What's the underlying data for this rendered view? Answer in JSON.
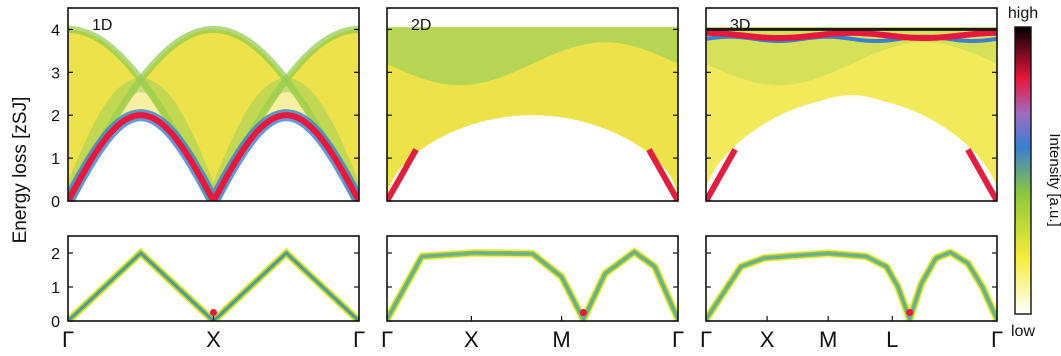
{
  "chart_data": {
    "type": "heatmap",
    "ylabel": "Energy loss [zSJ]",
    "colorbar": {
      "label": "Intensity [a.u.]",
      "high_label": "high",
      "low_label": "low",
      "colors": [
        "#ffffff",
        "#f5ec3a",
        "#8cc63f",
        "#3a7fd0",
        "#a06cc0",
        "#e8173c",
        "#000000"
      ]
    },
    "panels": [
      {
        "label": "1D",
        "row": "top",
        "ylim": [
          0,
          4.5
        ],
        "yticks": [
          "0",
          "1",
          "2",
          "3",
          "4"
        ],
        "xticks": [
          "Γ",
          "X",
          "Γ"
        ],
        "dispersion_max": 2.0,
        "continuum_upper_max": 4.0,
        "continuum_shape": "cosine"
      },
      {
        "label": "2D",
        "row": "top",
        "ylim": [
          0,
          4.5
        ],
        "yticks": [
          "0",
          "1",
          "2",
          "3",
          "4"
        ],
        "xticks": [
          "Γ",
          "X",
          "M",
          "Γ"
        ],
        "dispersion_max": 2.0,
        "continuum_upper_max": 4.0
      },
      {
        "label": "3D",
        "row": "top",
        "ylim": [
          0,
          4.5
        ],
        "yticks": [
          "0",
          "1",
          "2",
          "3",
          "4"
        ],
        "xticks": [
          "Γ",
          "X",
          "M",
          "L",
          "Γ"
        ],
        "dispersion_max": 2.0,
        "continuum_upper_max": 4.0
      },
      {
        "label": "",
        "row": "bottom",
        "ylim": [
          0,
          2.5
        ],
        "yticks": [
          "0",
          "1",
          "2"
        ],
        "xticks": [
          "Γ",
          "X",
          "Γ"
        ],
        "dispersion": [
          [
            0,
            0
          ],
          [
            0.25,
            2.0
          ],
          [
            0.5,
            0
          ],
          [
            0.75,
            2.0
          ],
          [
            1,
            0
          ]
        ]
      },
      {
        "label": "",
        "row": "bottom",
        "ylim": [
          0,
          2.5
        ],
        "yticks": [
          "0",
          "1",
          "2"
        ],
        "xticks": [
          "Γ",
          "X",
          "M",
          "Γ"
        ],
        "dispersion": [
          [
            0,
            0.05
          ],
          [
            0.12,
            1.9
          ],
          [
            0.3,
            2.0
          ],
          [
            0.5,
            1.98
          ],
          [
            0.6,
            1.3
          ],
          [
            0.675,
            0.05
          ],
          [
            0.75,
            1.4
          ],
          [
            0.85,
            2.03
          ],
          [
            0.92,
            1.6
          ],
          [
            1,
            0.05
          ]
        ]
      },
      {
        "label": "",
        "row": "bottom",
        "ylim": [
          0,
          2.5
        ],
        "yticks": [
          "0",
          "1",
          "2"
        ],
        "xticks": [
          "Γ",
          "X",
          "M",
          "L",
          "Γ"
        ],
        "dispersion": [
          [
            0,
            0.05
          ],
          [
            0.12,
            1.6
          ],
          [
            0.2,
            1.85
          ],
          [
            0.3,
            1.92
          ],
          [
            0.42,
            1.99
          ],
          [
            0.55,
            1.9
          ],
          [
            0.62,
            1.6
          ],
          [
            0.66,
            1.0
          ],
          [
            0.7,
            0.05
          ],
          [
            0.74,
            1.1
          ],
          [
            0.79,
            1.85
          ],
          [
            0.84,
            2.02
          ],
          [
            0.9,
            1.7
          ],
          [
            0.95,
            1.0
          ],
          [
            1,
            0.05
          ]
        ]
      }
    ]
  }
}
